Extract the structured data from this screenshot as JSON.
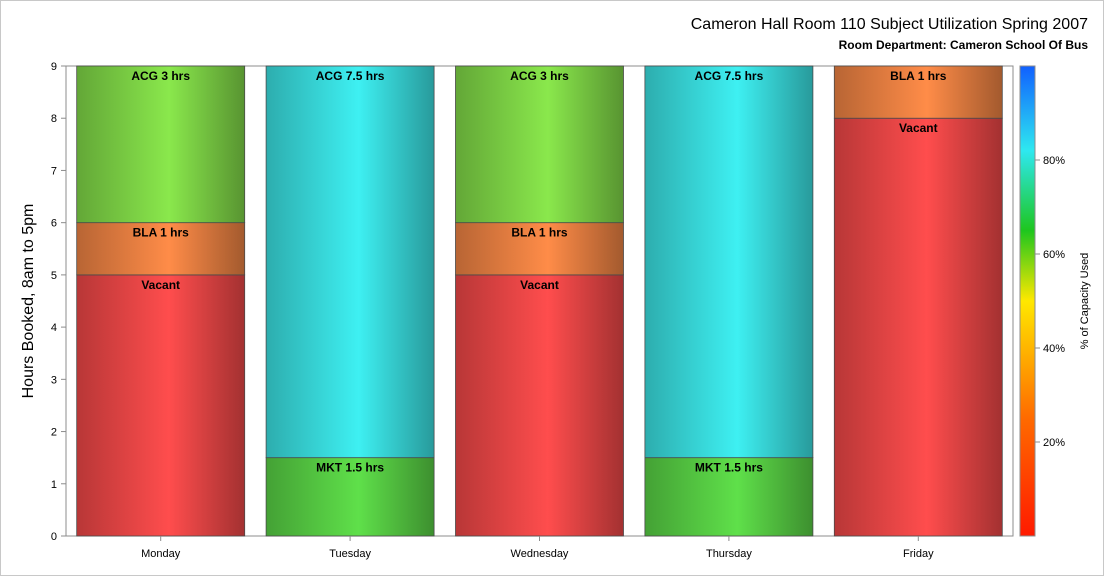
{
  "chart_data": {
    "type": "bar",
    "stacked": true,
    "title": "Cameron Hall Room 110 Subject Utilization Spring 2007",
    "subtitle": "Room Department:  Cameron School Of Bus",
    "ylabel": "Hours Booked, 8am to 5pm",
    "ylim": [
      0,
      9
    ],
    "yticks": [
      "0",
      "1",
      "2",
      "3",
      "4",
      "5",
      "6",
      "7",
      "8",
      "9"
    ],
    "categories": [
      "Monday",
      "Tuesday",
      "Wednesday",
      "Thursday",
      "Friday"
    ],
    "bars": [
      {
        "category": "Monday",
        "segments": [
          {
            "label": "Vacant",
            "value": 5,
            "color": "#ff4d4d"
          },
          {
            "label": "BLA 1 hrs",
            "value": 1,
            "color": "#ff8c48"
          },
          {
            "label": "ACG 3 hrs",
            "value": 3,
            "color": "#8ae84c"
          }
        ]
      },
      {
        "category": "Tuesday",
        "segments": [
          {
            "label": "MKT 1.5 hrs",
            "value": 1.5,
            "color": "#5fe04a"
          },
          {
            "label": "ACG 7.5 hrs",
            "value": 7.5,
            "color": "#3ef0f2"
          }
        ]
      },
      {
        "category": "Wednesday",
        "segments": [
          {
            "label": "Vacant",
            "value": 5,
            "color": "#ff4d4d"
          },
          {
            "label": "BLA 1 hrs",
            "value": 1,
            "color": "#ff8c48"
          },
          {
            "label": "ACG 3 hrs",
            "value": 3,
            "color": "#8ae84c"
          }
        ]
      },
      {
        "category": "Thursday",
        "segments": [
          {
            "label": "MKT 1.5 hrs",
            "value": 1.5,
            "color": "#5fe04a"
          },
          {
            "label": "ACG 7.5 hrs",
            "value": 7.5,
            "color": "#3ef0f2"
          }
        ]
      },
      {
        "category": "Friday",
        "segments": [
          {
            "label": "Vacant",
            "value": 8,
            "color": "#ff4d4d"
          },
          {
            "label": "BLA 1 hrs",
            "value": 1,
            "color": "#ff8c48"
          }
        ]
      }
    ],
    "colorbar": {
      "label": "% of Capacity Used",
      "range": [
        0,
        100
      ],
      "ticks": [
        {
          "value": 20,
          "label": "20%"
        },
        {
          "value": 40,
          "label": "40%"
        },
        {
          "value": 60,
          "label": "60%"
        },
        {
          "value": 80,
          "label": "80%"
        }
      ],
      "stops": [
        {
          "value": 0,
          "color": "#ff1a00"
        },
        {
          "value": 25,
          "color": "#ff6a00"
        },
        {
          "value": 50,
          "color": "#ffe800"
        },
        {
          "value": 65,
          "color": "#1ec61e"
        },
        {
          "value": 82,
          "color": "#2ee8f0"
        },
        {
          "value": 100,
          "color": "#1060ff"
        }
      ]
    },
    "grid": false,
    "legend": "none"
  }
}
